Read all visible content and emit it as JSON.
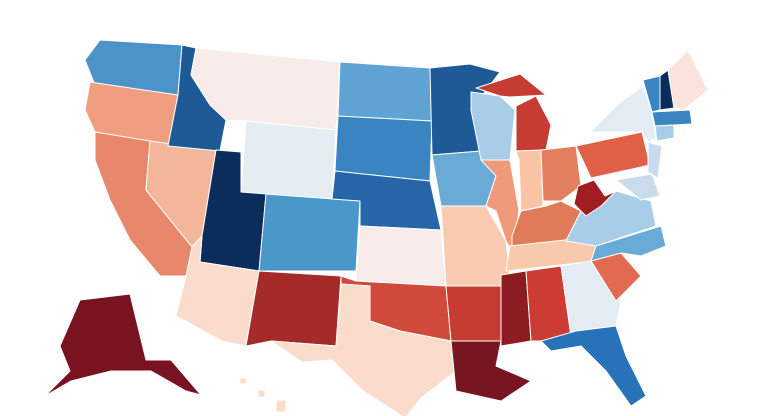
{
  "map": {
    "type": "choropleth",
    "region": "United States",
    "palette": [
      "#0b2d5c",
      "#1e5a96",
      "#2a72b8",
      "#3f86c3",
      "#5ea3d3",
      "#a9cde7",
      "#e1ecf3",
      "#f7ece9",
      "#fbdccb",
      "#f6bc9f",
      "#ee9a7c",
      "#e2795b",
      "#d2483a",
      "#b02a2c",
      "#8c1c22",
      "#771521"
    ],
    "state_colors": {
      "WA": "#4b93c9",
      "OR": "#ef9f80",
      "CA": "#e8876b",
      "NV": "#f4b69a",
      "ID": "#1e5a96",
      "MT": "#f7ece9",
      "WY": "#e3edf2",
      "UT": "#0b2d5c",
      "CO": "#4a97c9",
      "AZ": "#fbdccb",
      "NM": "#a52a2a",
      "ND": "#5ea3d3",
      "SD": "#3b84c2",
      "NE": "#2565a8",
      "KS": "#f7ece9",
      "OK": "#d04a3b",
      "TX": "#fbdccb",
      "MN": "#1e5a96",
      "IA": "#6aaad6",
      "MO": "#f9cbb0",
      "AR": "#c63b32",
      "LA": "#771521",
      "WI": "#a9cde7",
      "IL": "#ef9a7a",
      "MI": "#c63b32",
      "IN": "#f9c4a5",
      "OH": "#e4805f",
      "KY": "#e07a58",
      "TN": "#f9c9ac",
      "MS": "#8c1c22",
      "AL": "#cc3c33",
      "GA": "#e3ecf3",
      "FL": "#2872ba",
      "SC": "#e26a50",
      "NC": "#6aaad6",
      "VA": "#a8cde8",
      "WV": "#a11d22",
      "PA": "#e06047",
      "NY": "#e3ecf3",
      "NJ": "#c8dcee",
      "MD": "#c8dcee",
      "VT": "#3b84c2",
      "NH": "#0b2d5c",
      "ME": "#f9e3da",
      "MA": "#3b84c2",
      "CT": "#a8cde8",
      "AK": "#7a1320",
      "HI": "#fbdccb"
    }
  }
}
